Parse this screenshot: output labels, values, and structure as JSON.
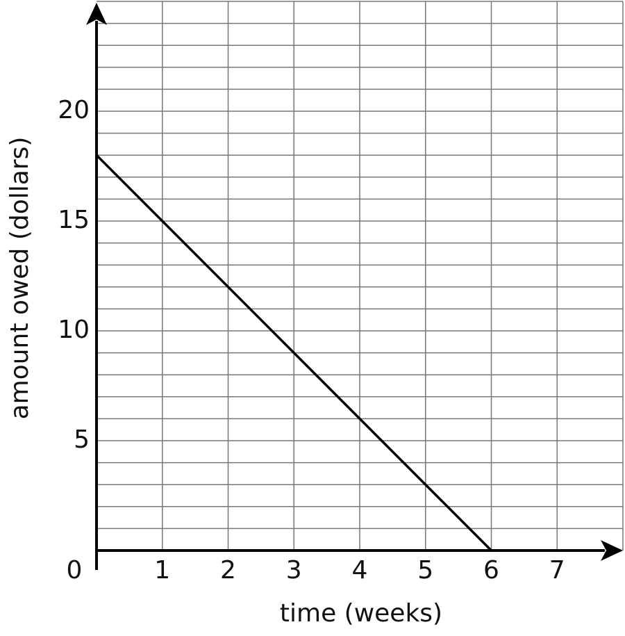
{
  "chart_data": {
    "type": "line",
    "x_label": "time (weeks)",
    "y_label": "amount owed (dollars)",
    "x": [
      0,
      6
    ],
    "series": [
      {
        "color": "#000000",
        "values": [
          18,
          0
        ]
      }
    ],
    "xlim": [
      0,
      8
    ],
    "xticks": [
      0,
      1,
      2,
      3,
      4,
      5,
      6,
      7
    ],
    "ylim": [
      0,
      25
    ],
    "yticks": [
      5,
      10,
      15,
      20
    ],
    "grid": true
  }
}
